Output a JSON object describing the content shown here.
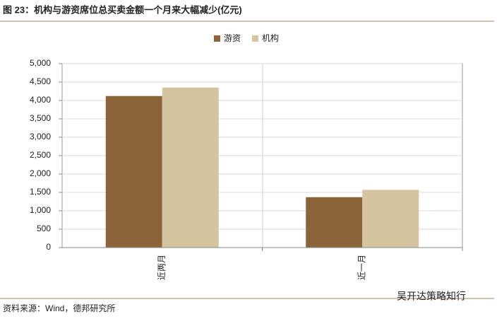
{
  "chart_data": {
    "type": "bar",
    "title": "图 23：机构与游资席位总买卖金额一个月来大幅减少(亿元)",
    "categories": [
      "近两月",
      "近一月"
    ],
    "series": [
      {
        "name": "游资",
        "color": "#8b6439",
        "values": [
          4120,
          1370
        ]
      },
      {
        "name": "机构",
        "color": "#d4c4a0",
        "values": [
          4350,
          1570
        ]
      }
    ],
    "ylim": [
      0,
      5000
    ],
    "yticks": [
      0,
      500,
      {
        "value": 1000,
        "label": "1,000"
      },
      {
        "value": 1500,
        "label": "1,500"
      },
      {
        "value": 2000,
        "label": "2,000"
      },
      {
        "value": 2500,
        "label": "2,500"
      },
      {
        "value": 3000,
        "label": "3,000"
      },
      {
        "value": 3500,
        "label": "3,500"
      },
      {
        "value": 4000,
        "label": "4,000"
      },
      {
        "value": 4500,
        "label": "4,500"
      },
      {
        "value": 5000,
        "label": "5,000"
      }
    ],
    "grid": true,
    "legend": "top",
    "source": "资料来源：Wind，德邦研究所",
    "watermark": "吴开达策略知行"
  }
}
